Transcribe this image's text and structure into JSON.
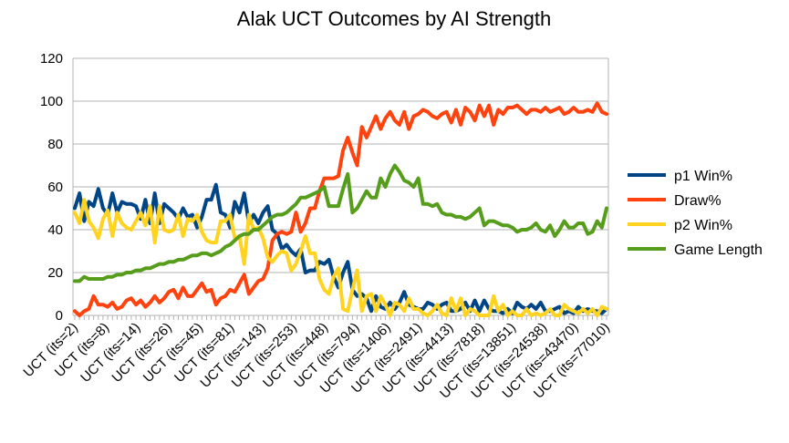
{
  "chart_data": {
    "type": "line",
    "title": "Alak UCT Outcomes by AI Strength",
    "xlabel": "",
    "ylabel": "",
    "ylim": [
      0,
      120
    ],
    "yticks": [
      0,
      20,
      40,
      60,
      80,
      100,
      120
    ],
    "grid": true,
    "legend_position": "right",
    "tick_labels": [
      "UCT (its=2)",
      "UCT (its=8)",
      "UCT (its=14)",
      "UCT (its=26)",
      "UCT (its=45)",
      "UCT (its=81)",
      "UCT (its=143)",
      "UCT (its=253)",
      "UCT (its=448)",
      "UCT (its=794)",
      "UCT (its=1406)",
      "UCT (its=2491)",
      "UCT (its=4413)",
      "UCT (its=7818)",
      "UCT (its=13851)",
      "UCT (its=24538)",
      "UCT (its=43470)",
      "UCT (its=77010)"
    ],
    "series": [
      {
        "name": "p1 Win%",
        "color": "#004586",
        "values": [
          50,
          57,
          44,
          53,
          51,
          59,
          50,
          47,
          57,
          48,
          53,
          52,
          52,
          51,
          45,
          54,
          43,
          57,
          43,
          52,
          50,
          48,
          45,
          50,
          46,
          47,
          41,
          46,
          54,
          54,
          61,
          48,
          47,
          41,
          53,
          48,
          57,
          43,
          47,
          43,
          48,
          51,
          40,
          38,
          31,
          33,
          30,
          28,
          31,
          20,
          21,
          21,
          25,
          24,
          26,
          18,
          13,
          20,
          25,
          12,
          9,
          10,
          8,
          2,
          9,
          4,
          3,
          6,
          3,
          6,
          11,
          5,
          4,
          3,
          3,
          6,
          5,
          3,
          5,
          6,
          2,
          2,
          3,
          6,
          2,
          7,
          2,
          7,
          3,
          2,
          2,
          1,
          3,
          1,
          6,
          4,
          3,
          5,
          3,
          6,
          2,
          2,
          3,
          4,
          1,
          2,
          1,
          4,
          2,
          3,
          2,
          2,
          1,
          3
        ]
      },
      {
        "name": "Draw%",
        "color": "#ff420e",
        "values": [
          2,
          0,
          2,
          3,
          9,
          5,
          5,
          4,
          6,
          3,
          4,
          7,
          8,
          5,
          7,
          4,
          6,
          9,
          6,
          8,
          11,
          12,
          8,
          13,
          9,
          9,
          12,
          15,
          11,
          12,
          5,
          8,
          9,
          12,
          11,
          15,
          19,
          10,
          13,
          16,
          17,
          22,
          35,
          38,
          39,
          38,
          39,
          48,
          39,
          43,
          50,
          50,
          58,
          64,
          64,
          64,
          65,
          77,
          83,
          76,
          70,
          88,
          83,
          88,
          93,
          87,
          92,
          95,
          91,
          89,
          95,
          87,
          93,
          94,
          96,
          95,
          93,
          92,
          94,
          95,
          90,
          96,
          89,
          97,
          95,
          91,
          98,
          93,
          98,
          89,
          96,
          94,
          97,
          97,
          98,
          96,
          94,
          96,
          96,
          95,
          97,
          95,
          96,
          97,
          94,
          95,
          97,
          95,
          95,
          96,
          95,
          99,
          95,
          94
        ]
      },
      {
        "name": "p2 Win%",
        "color": "#ffd320",
        "values": [
          48,
          43,
          54,
          44,
          41,
          36,
          45,
          49,
          37,
          48,
          43,
          41,
          40,
          44,
          48,
          42,
          51,
          34,
          51,
          40,
          39,
          40,
          47,
          37,
          45,
          44,
          47,
          39,
          35,
          34,
          34,
          44,
          44,
          47,
          36,
          37,
          24,
          47,
          40,
          41,
          36,
          27,
          25,
          28,
          30,
          29,
          21,
          24,
          30,
          37,
          29,
          29,
          17,
          12,
          10,
          18,
          22,
          3,
          2,
          12,
          21,
          2,
          9,
          10,
          2,
          9,
          5,
          0,
          6,
          5,
          2,
          8,
          3,
          3,
          1,
          0,
          2,
          5,
          1,
          0,
          8,
          2,
          8,
          0,
          3,
          2,
          0,
          0,
          0,
          9,
          2,
          5,
          0,
          2,
          0,
          0,
          3,
          0,
          1,
          0,
          1,
          3,
          0,
          0,
          5,
          3,
          2,
          1,
          3,
          1,
          3,
          0,
          4,
          3
        ]
      },
      {
        "name": "Game Length",
        "color": "#579d1c",
        "values": [
          16,
          16,
          18,
          17,
          17,
          17,
          17,
          18,
          18,
          19,
          19,
          20,
          20,
          21,
          21,
          22,
          22,
          23,
          24,
          24,
          25,
          25,
          26,
          26,
          27,
          28,
          28,
          29,
          29,
          28,
          29,
          30,
          32,
          33,
          35,
          37,
          38,
          38,
          40,
          40,
          42,
          44,
          46,
          47,
          47,
          48,
          50,
          52,
          55,
          55,
          56,
          57,
          58,
          60,
          51,
          51,
          51,
          59,
          66,
          48,
          50,
          54,
          58,
          55,
          55,
          64,
          60,
          66,
          70,
          67,
          63,
          62,
          60,
          64,
          52,
          52,
          51,
          52,
          48,
          47,
          47,
          46,
          46,
          45,
          46,
          48,
          50,
          42,
          44,
          44,
          43,
          42,
          42,
          41,
          39,
          40,
          40,
          41,
          43,
          40,
          39,
          42,
          37,
          40,
          44,
          41,
          41,
          43,
          43,
          38,
          39,
          44,
          41,
          50
        ]
      }
    ]
  }
}
